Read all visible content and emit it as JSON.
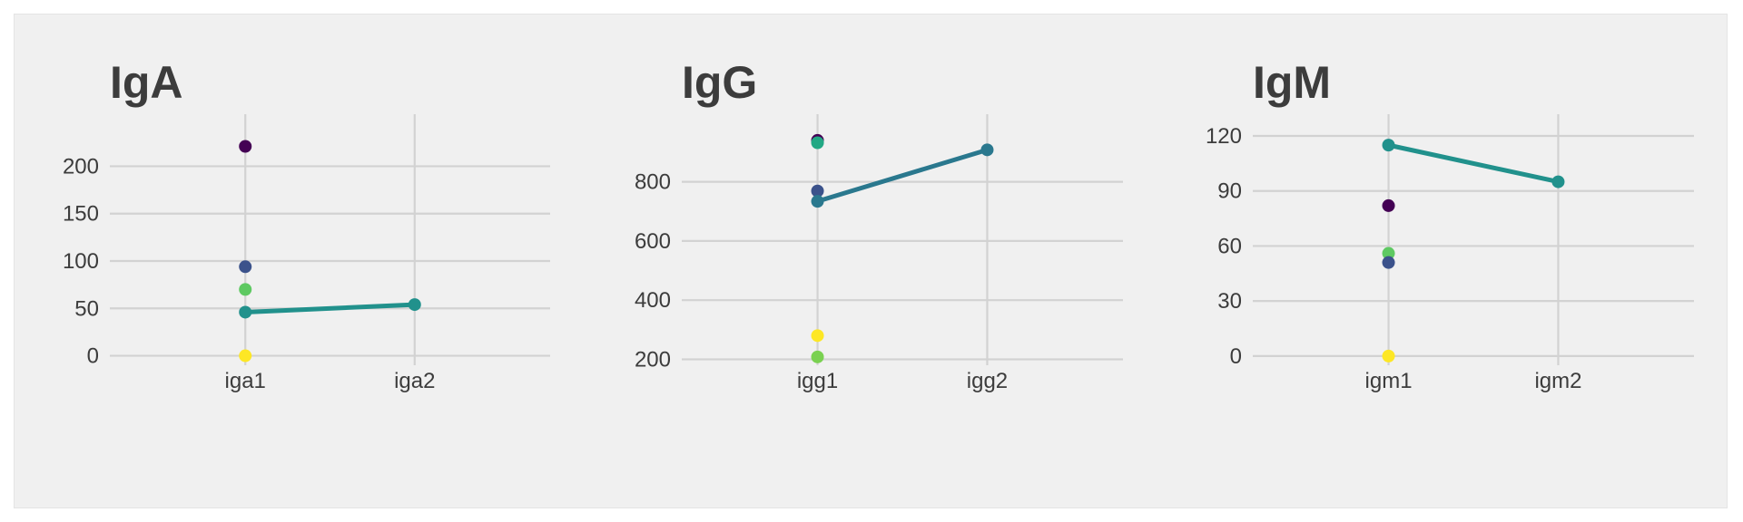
{
  "chart_data": [
    {
      "type": "scatter",
      "title": "IgA",
      "categories": [
        "iga1",
        "iga2"
      ],
      "ylim": [
        -10,
        232
      ],
      "yticks": [
        0,
        50,
        100,
        150,
        200
      ],
      "grid": true,
      "points": [
        {
          "x": "iga1",
          "y": 221,
          "color": "#440154"
        },
        {
          "x": "iga1",
          "y": 94,
          "color": "#3b528b"
        },
        {
          "x": "iga1",
          "y": 70,
          "color": "#5ec962"
        },
        {
          "x": "iga1",
          "y": 46,
          "color": "#21918c"
        },
        {
          "x": "iga1",
          "y": 0,
          "color": "#fde725"
        },
        {
          "x": "iga2",
          "y": 54,
          "color": "#21918c"
        }
      ],
      "line": {
        "values": [
          46,
          54
        ],
        "color": "#21918c"
      }
    },
    {
      "type": "scatter",
      "title": "IgG",
      "categories": [
        "igg1",
        "igg2"
      ],
      "ylim": [
        180,
        955
      ],
      "yticks": [
        200,
        400,
        600,
        800
      ],
      "grid": true,
      "points": [
        {
          "x": "igg1",
          "y": 940,
          "color": "#440154"
        },
        {
          "x": "igg1",
          "y": 932,
          "color": "#22a884"
        },
        {
          "x": "igg1",
          "y": 769,
          "color": "#3b528b"
        },
        {
          "x": "igg1",
          "y": 734,
          "color": "#2a788e"
        },
        {
          "x": "igg1",
          "y": 280,
          "color": "#fde725"
        },
        {
          "x": "igg1",
          "y": 208,
          "color": "#7ad151"
        },
        {
          "x": "igg2",
          "y": 908,
          "color": "#2a788e"
        }
      ],
      "line": {
        "values": [
          734,
          908
        ],
        "color": "#2a788e"
      }
    },
    {
      "type": "scatter",
      "title": "IgM",
      "categories": [
        "igm1",
        "igm2"
      ],
      "ylim": [
        -5,
        120
      ],
      "yticks": [
        0,
        30,
        60,
        90,
        120
      ],
      "grid": true,
      "points": [
        {
          "x": "igm1",
          "y": 115,
          "color": "#21918c"
        },
        {
          "x": "igm1",
          "y": 82,
          "color": "#440154"
        },
        {
          "x": "igm1",
          "y": 56,
          "color": "#5ec962"
        },
        {
          "x": "igm1",
          "y": 51,
          "color": "#3b528b"
        },
        {
          "x": "igm1",
          "y": 0,
          "color": "#fde725"
        },
        {
          "x": "igm2",
          "y": 95,
          "color": "#21918c"
        }
      ],
      "line": {
        "values": [
          115,
          95
        ],
        "color": "#21918c"
      }
    }
  ]
}
